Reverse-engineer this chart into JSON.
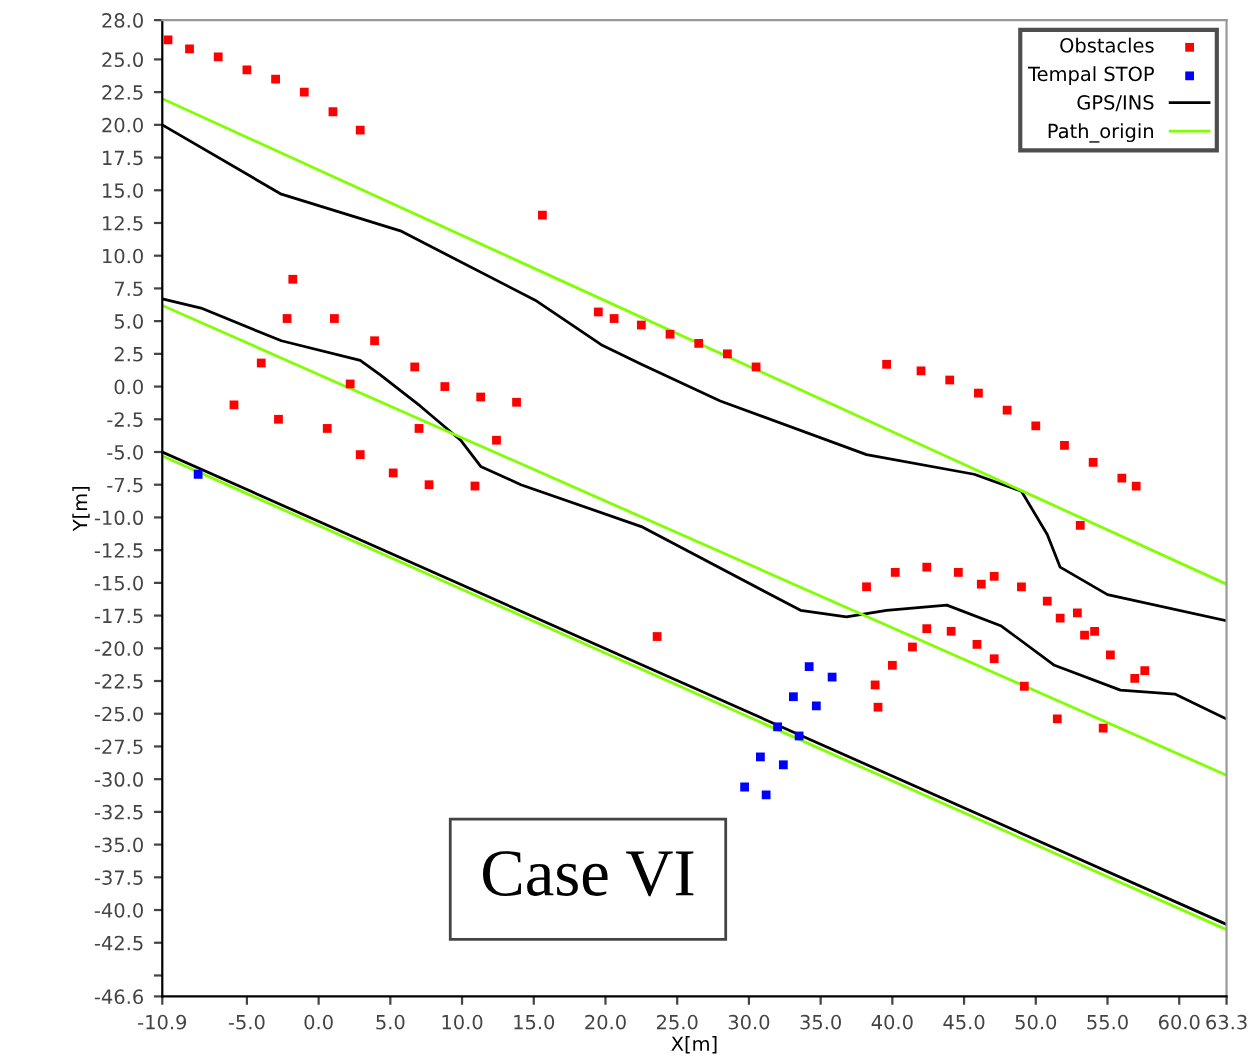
{
  "chart_data": {
    "type": "line",
    "xlabel": "X[m]",
    "ylabel": "Y[m]",
    "annotations": [
      "Case VI"
    ],
    "xlim": [
      -10.9,
      63.3
    ],
    "xticks": [
      -10.9,
      {
        "value": -5,
        "label": "-5.0"
      },
      {
        "value": 0,
        "label": "0.0"
      },
      {
        "value": 5,
        "label": "5.0"
      },
      {
        "value": 10,
        "label": "10.0"
      },
      {
        "value": 15,
        "label": "15.0"
      },
      {
        "value": 20,
        "label": "20.0"
      },
      {
        "value": 25,
        "label": "25.0"
      },
      {
        "value": 30,
        "label": "30.0"
      },
      {
        "value": 35,
        "label": "35.0"
      },
      {
        "value": 40,
        "label": "40.0"
      },
      {
        "value": 45,
        "label": "45.0"
      },
      {
        "value": 50,
        "label": "50.0"
      },
      {
        "value": 55,
        "label": "55.0"
      },
      {
        "value": 60,
        "label": "60.0"
      },
      63.3
    ],
    "ylim": [
      -46.6,
      28.0
    ],
    "yticks": [
      -46.6,
      {
        "value": -45,
        "label": null
      },
      -42.5,
      {
        "value": -40,
        "label": "-40.0"
      },
      -37.5,
      {
        "value": -35,
        "label": "-35.0"
      },
      -32.5,
      {
        "value": -30,
        "label": "-30.0"
      },
      -27.5,
      {
        "value": -25,
        "label": "-25.0"
      },
      -22.5,
      {
        "value": -20,
        "label": "-20.0"
      },
      -17.5,
      {
        "value": -15,
        "label": "-15.0"
      },
      -12.5,
      {
        "value": -10,
        "label": "-10.0"
      },
      -7.5,
      {
        "value": -5,
        "label": "-5.0"
      },
      -2.5,
      {
        "value": 0,
        "label": "0.0"
      },
      2.5,
      {
        "value": 5,
        "label": "5.0"
      },
      7.5,
      {
        "value": 10,
        "label": "10.0"
      },
      12.5,
      {
        "value": 15,
        "label": "15.0"
      },
      17.5,
      {
        "value": 20,
        "label": "20.0"
      },
      22.5,
      {
        "value": 25,
        "label": "25.0"
      },
      {
        "value": 28,
        "label": "28.0"
      }
    ],
    "legend": "top right",
    "series": [
      {
        "name": "Obstacles",
        "type": "scatter",
        "marker": "square",
        "color": "#ff0000",
        "x": [
          -10.5,
          -9.0,
          -7.0,
          -5.0,
          -3.0,
          -1.0,
          1.0,
          2.9,
          15.6,
          -1.8,
          -2.2,
          1.1,
          3.9,
          -4.0,
          6.7,
          2.2,
          8.8,
          -5.9,
          11.3,
          13.8,
          -2.8,
          0.6,
          7.0,
          12.4,
          2.9,
          5.2,
          7.7,
          10.9,
          19.5,
          20.6,
          22.5,
          24.5,
          26.5,
          28.5,
          30.5,
          39.6,
          42.0,
          44.0,
          46.0,
          48.0,
          50.0,
          52.0,
          54.0,
          56.0,
          57.0,
          53.1,
          23.6,
          38.2,
          40.2,
          42.4,
          44.6,
          46.2,
          47.1,
          49.0,
          50.8,
          51.7,
          52.9,
          53.4,
          54.1,
          55.2,
          57.6,
          56.9,
          42.4,
          44.1,
          41.4,
          45.9,
          47.1,
          40.0,
          38.8,
          39.0,
          49.2,
          51.5,
          54.7
        ],
        "values": [
          26.5,
          25.8,
          25.2,
          24.2,
          23.5,
          22.5,
          21.0,
          19.6,
          13.1,
          8.2,
          5.2,
          5.2,
          3.5,
          1.8,
          1.5,
          0.2,
          0.0,
          -1.4,
          -0.8,
          -1.2,
          -2.5,
          -3.2,
          -3.2,
          -4.1,
          -5.2,
          -6.6,
          -7.5,
          -7.6,
          5.7,
          5.2,
          4.7,
          4.0,
          3.3,
          2.5,
          1.5,
          1.7,
          1.2,
          0.5,
          -0.5,
          -1.8,
          -3.0,
          -4.5,
          -5.8,
          -7.0,
          -7.6,
          -10.6,
          -19.1,
          -15.3,
          -14.2,
          -13.8,
          -14.2,
          -15.1,
          -14.5,
          -15.3,
          -16.4,
          -17.7,
          -17.3,
          -19.0,
          -18.7,
          -20.5,
          -21.7,
          -22.3,
          -18.5,
          -18.7,
          -19.9,
          -19.7,
          -20.8,
          -21.3,
          -22.8,
          -24.5,
          -22.9,
          -25.4,
          -26.1
        ]
      },
      {
        "name": "Tempal STOP",
        "type": "scatter",
        "marker": "square",
        "color": "#0000ff",
        "x": [
          -8.4,
          29.7,
          30.8,
          32.0,
          33.1,
          34.2,
          31.2,
          32.4,
          33.5,
          34.7,
          35.8
        ],
        "values": [
          -6.7,
          -30.6,
          -28.3,
          -26.0,
          -23.7,
          -21.4,
          -31.2,
          -28.9,
          -26.7,
          -24.4,
          -22.2
        ]
      },
      {
        "name": "GPS/INS",
        "color": "#000000",
        "x": [
          -10.9,
          -2.6,
          5.7,
          15.1,
          19.7,
          22.5,
          28.0,
          38.2,
          45.7,
          49.0,
          50.8,
          51.7,
          55.0,
          63.3
        ],
        "values": [
          20.0,
          14.7,
          11.9,
          6.6,
          3.2,
          1.7,
          -1.1,
          -5.2,
          -6.7,
          -8.0,
          -11.3,
          -13.8,
          -15.9,
          -17.9
        ]
      },
      {
        "color": "#000000",
        "x": [
          -10.9,
          -8.2,
          -2.6,
          2.9,
          4.3,
          7.1,
          9.9,
          11.3,
          14.1,
          22.5,
          33.6,
          36.8,
          39.6,
          43.8,
          47.6,
          51.3,
          55.9,
          59.7,
          63.3
        ],
        "values": [
          6.7,
          6.0,
          3.5,
          2.0,
          0.9,
          -1.5,
          -4.1,
          -6.1,
          -7.5,
          -10.7,
          -17.1,
          -17.6,
          -17.1,
          -16.7,
          -18.3,
          -21.3,
          -23.2,
          -23.5,
          -25.4
        ]
      },
      {
        "color": "#000000",
        "x": [
          -10.9,
          63.3
        ],
        "values": [
          -5.0,
          -41.1
        ]
      },
      {
        "name": "Path_origin",
        "color": "#7fff00",
        "x": [
          -10.9,
          63.3
        ],
        "values": [
          22.0,
          -15.1
        ]
      },
      {
        "color": "#7fff00",
        "x": [
          -10.9,
          63.3
        ],
        "values": [
          6.2,
          -29.7
        ]
      },
      {
        "color": "#7fff00",
        "x": [
          -10.9,
          63.3
        ],
        "values": [
          -5.3,
          -41.5
        ]
      }
    ]
  }
}
